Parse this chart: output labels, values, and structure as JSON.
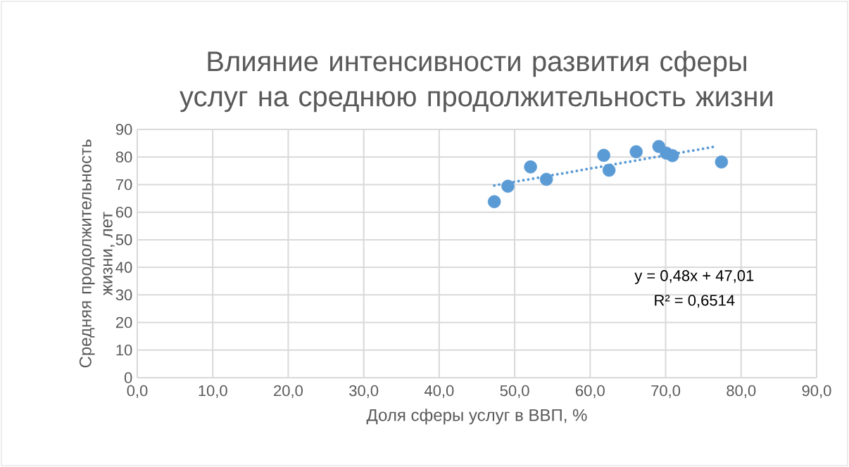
{
  "chart_data": {
    "type": "scatter",
    "title": "Влияние интенсивности развития сферы услуг на среднюю продолжительность жизни",
    "xlabel": "Доля сферы услуг в ВВП, %",
    "ylabel": "Средняя продолжительность жизни, лет",
    "annotations": [
      "y = 0,48x + 47,01",
      "R² = 0,6514"
    ],
    "series": [
      {
        "type": "scatter",
        "color": "#5b9bd5",
        "marker": "circle",
        "x": [
          47.3,
          49.1,
          52.1,
          54.2,
          61.8,
          62.5,
          66.1,
          69.1,
          70.1,
          70.9,
          77.4
        ],
        "values": [
          63.8,
          69.4,
          76.4,
          71.9,
          80.6,
          75.2,
          81.9,
          83.8,
          81.4,
          80.5,
          78.2
        ]
      },
      {
        "type": "line",
        "color": "#5b9bd5",
        "line_style": "dotted",
        "marker": "none",
        "x": [
          47.3,
          76.4
        ],
        "values": [
          69.7,
          83.7
        ]
      }
    ],
    "xlim": [
      0,
      90
    ],
    "ylim": [
      0,
      90
    ],
    "xticks": [
      {
        "value": 0,
        "label": "0,0"
      },
      {
        "value": 10,
        "label": "10,0"
      },
      {
        "value": 20,
        "label": "20,0"
      },
      {
        "value": 30,
        "label": "30,0"
      },
      {
        "value": 40,
        "label": "40,0"
      },
      {
        "value": 50,
        "label": "50,0"
      },
      {
        "value": 60,
        "label": "60,0"
      },
      {
        "value": 70,
        "label": "70,0"
      },
      {
        "value": 80,
        "label": "80,0"
      },
      {
        "value": 90,
        "label": "90,0"
      }
    ],
    "yticks": [
      0,
      10,
      20,
      30,
      40,
      50,
      60,
      70,
      80,
      90
    ],
    "grid": true
  }
}
